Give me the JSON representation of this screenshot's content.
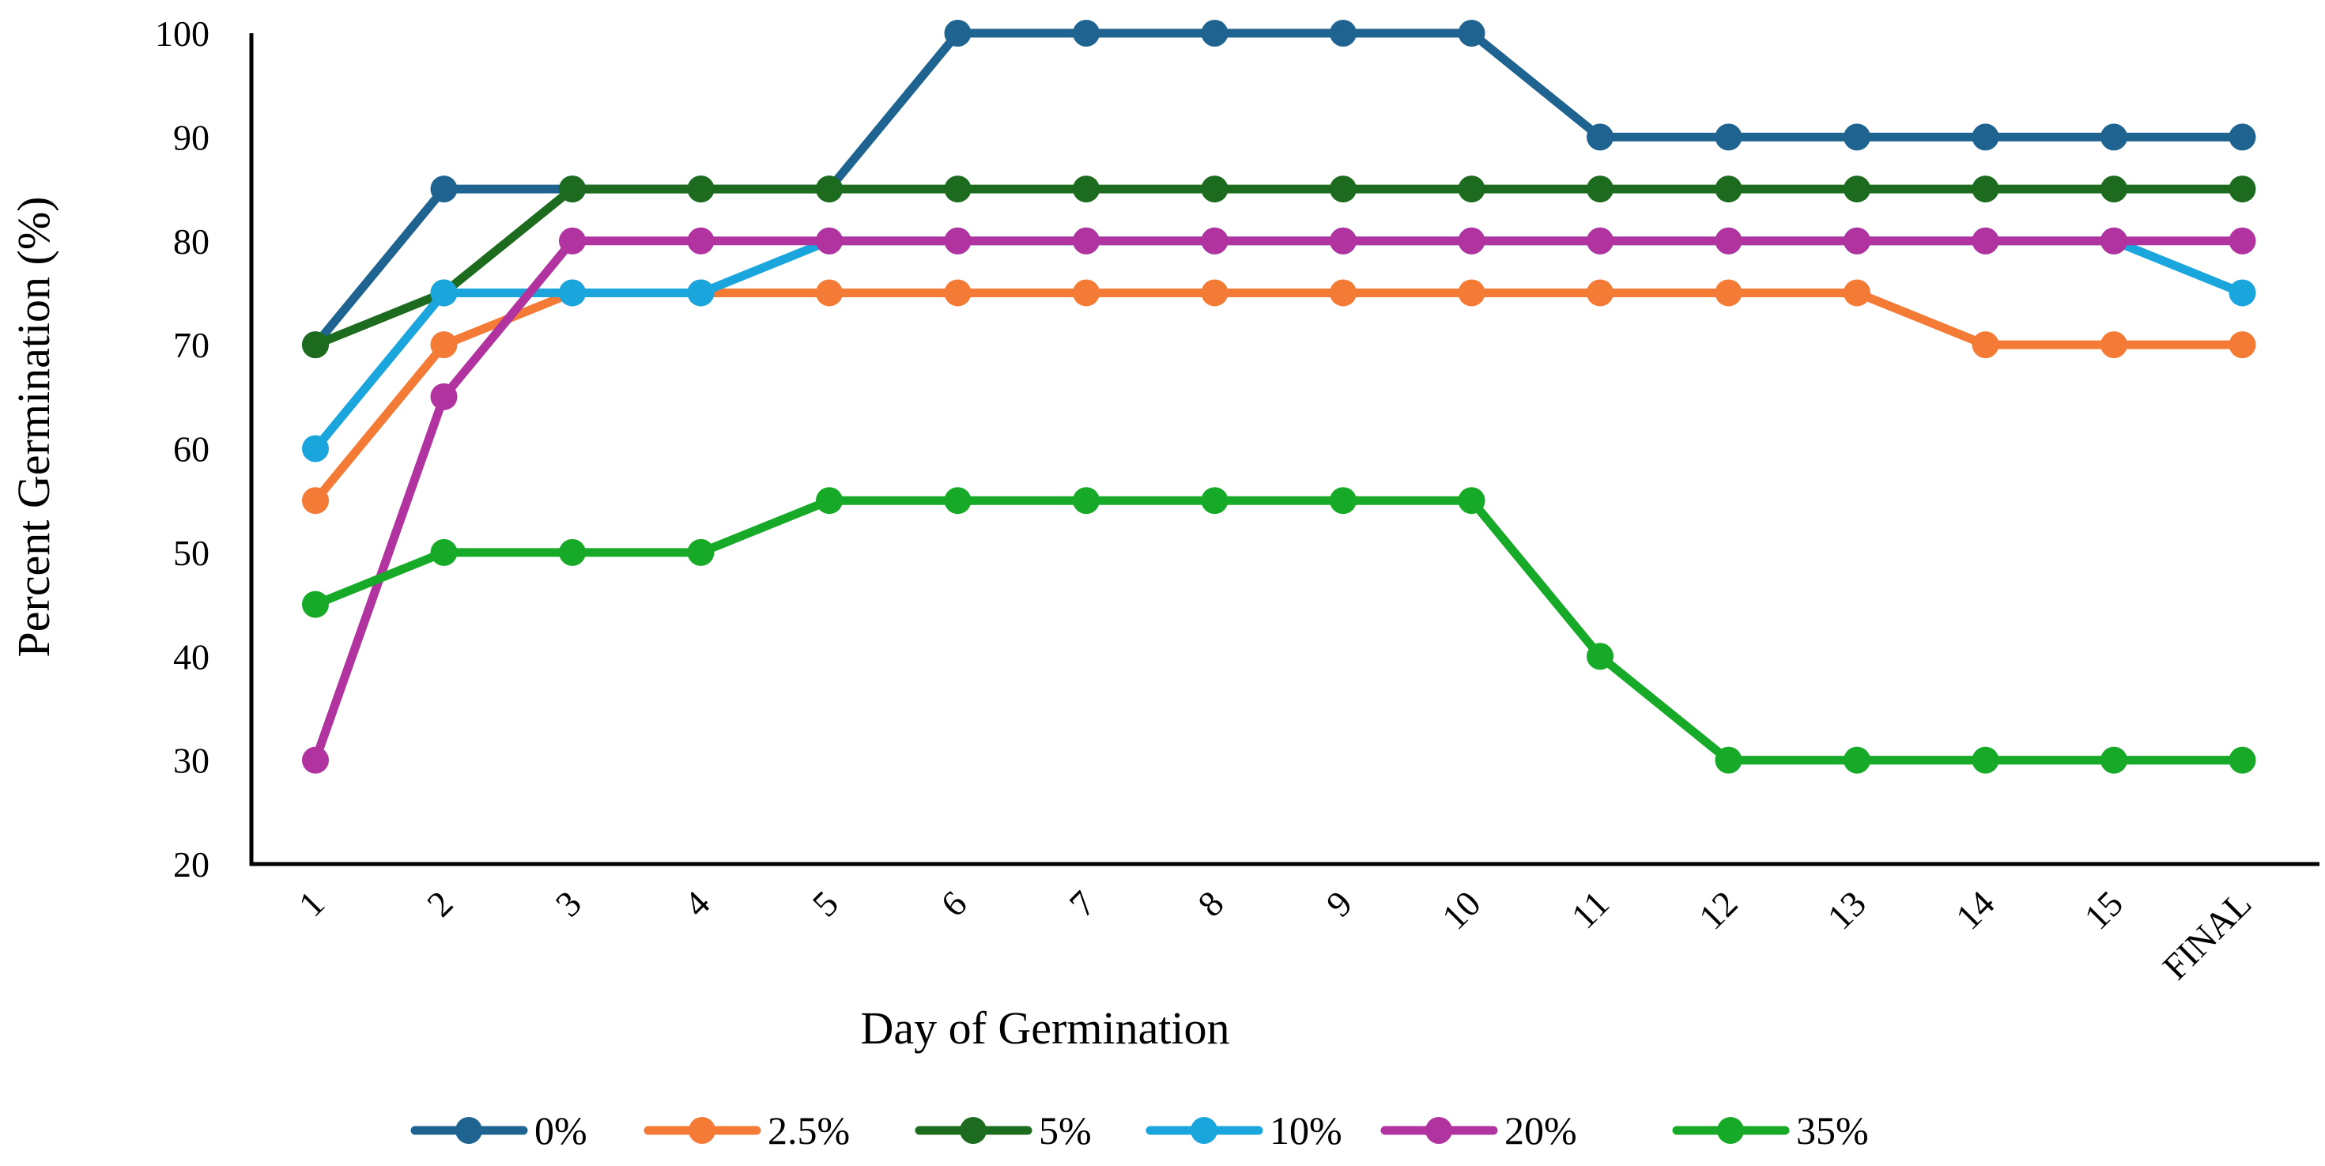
{
  "chart_data": {
    "type": "line",
    "title": "",
    "xlabel": "Day of Germination",
    "ylabel": "Percent Germination (%)",
    "categories": [
      "1",
      "2",
      "3",
      "4",
      "5",
      "6",
      "7",
      "8",
      "9",
      "10",
      "11",
      "12",
      "13",
      "14",
      "15",
      "FINAL"
    ],
    "ylim": [
      20,
      100
    ],
    "yticks": [
      "20",
      "30",
      "40",
      "50",
      "60",
      "70",
      "80",
      "90",
      "100"
    ],
    "grid": false,
    "legend_position": "bottom",
    "series": [
      {
        "name": "0%",
        "color": "#1F6391",
        "values": [
          70,
          85,
          85,
          85,
          85,
          100,
          100,
          100,
          100,
          100,
          90,
          90,
          90,
          90,
          90,
          90
        ]
      },
      {
        "name": "2.5%",
        "color": "#F47B36",
        "values": [
          55,
          70,
          75,
          75,
          75,
          75,
          75,
          75,
          75,
          75,
          75,
          75,
          75,
          70,
          70,
          70
        ]
      },
      {
        "name": "5%",
        "color": "#1C6B1E",
        "values": [
          70,
          75,
          85,
          85,
          85,
          85,
          85,
          85,
          85,
          85,
          85,
          85,
          85,
          85,
          85,
          85
        ]
      },
      {
        "name": "10%",
        "color": "#1AA5DD",
        "values": [
          60,
          75,
          75,
          75,
          80,
          80,
          80,
          80,
          80,
          80,
          80,
          80,
          80,
          80,
          80,
          75
        ]
      },
      {
        "name": "20%",
        "color": "#B0339F",
        "values": [
          30,
          65,
          80,
          80,
          80,
          80,
          80,
          80,
          80,
          80,
          80,
          80,
          80,
          80,
          80,
          80
        ]
      },
      {
        "name": "35%",
        "color": "#17AA28",
        "values": [
          45,
          50,
          50,
          50,
          55,
          55,
          55,
          55,
          55,
          55,
          40,
          30,
          30,
          30,
          30,
          30
        ]
      }
    ]
  }
}
